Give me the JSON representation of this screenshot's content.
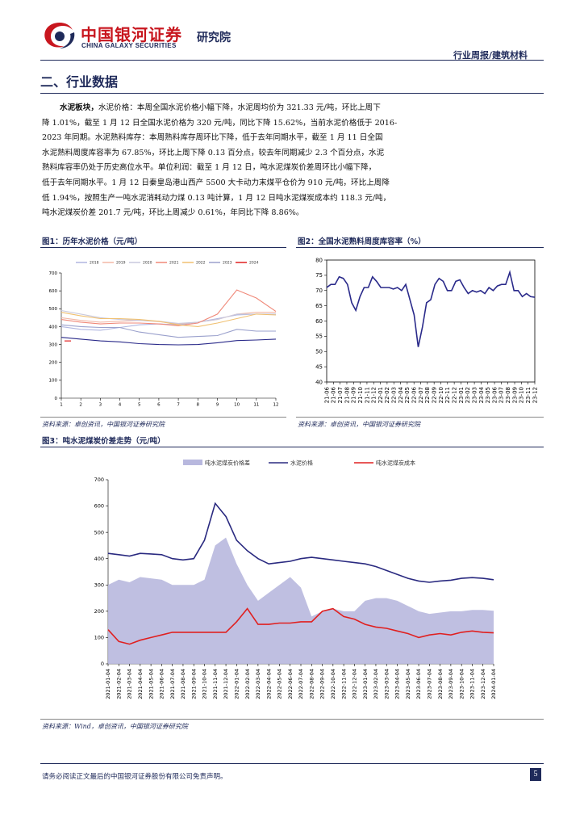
{
  "header": {
    "logo_cn": "中国银河证券",
    "logo_en": "CHINA GALAXY SECURITIES",
    "institute": "研究院",
    "report_type": "行业周报/建筑材料"
  },
  "section": {
    "title": "二、行业数据"
  },
  "paragraph": {
    "lead": "水泥板块，",
    "lines": [
      "水泥价格：本周全国水泥价格小幅下降，水泥周均价为 321.33 元/吨，环比上周下",
      "降 1.01%，截至 1 月 12 日全国水泥价格为 320 元/吨，同比下降 15.62%，当前水泥价格低于 2016-",
      "2023 年同期。水泥熟料库存：本周熟料库存周环比下降，低于去年同期水平，截至 1 月 11 日全国",
      "水泥熟料周度库容率为 67.85%，环比上周下降 0.13 百分点，较去年同期减少 2.3 个百分点，水泥",
      "熟料库容率仍处于历史高位水平。单位利润：截至 1 月 12 日，吨水泥煤炭价差周环比小幅下降，",
      "低于去年同期水平。1 月 12 日秦皇岛港山西产 5500 大卡动力末煤平仓价为 910 元/吨，环比上周降",
      "低 1.94%，按照生产一吨水泥消耗动力煤 0.13 吨计算，1 月 12 日吨水泥煤炭成本约 118.3 元/吨，",
      "吨水泥煤炭价差 201.7 元/吨，环比上周减少 0.61%，年同比下降 8.86%。"
    ]
  },
  "figures": {
    "fig1": {
      "title": "图1：历年水泥价格（元/吨）",
      "source": "资料来源：卓创资讯，中国银河证券研究院"
    },
    "fig2": {
      "title": "图2：全国水泥熟料周度库容率（%）",
      "source": "资料来源：卓创资讯，中国银河证券研究院"
    },
    "fig3": {
      "title": "图3：吨水泥煤炭价差走势（元/吨）",
      "source": "资料来源：Wind，卓创资讯，中国银河证券研究院"
    }
  },
  "footer": {
    "disclaimer": "请务必阅读正文最后的中国银河证券股份有限公司免责声明。",
    "page": "5"
  },
  "chart_data": [
    {
      "id": "fig1",
      "type": "line",
      "x_ticks": [
        "1",
        "2",
        "3",
        "4",
        "5",
        "6",
        "7",
        "8",
        "9",
        "10",
        "11",
        "12"
      ],
      "ylim": [
        0,
        700
      ],
      "y_ticks": [
        0,
        100,
        200,
        300,
        400,
        500,
        600,
        700
      ],
      "legend_position": "top",
      "series": [
        {
          "name": "2018",
          "color": "#b0b6e0",
          "values": [
            400,
            385,
            380,
            395,
            410,
            415,
            410,
            425,
            445,
            465,
            470,
            470
          ]
        },
        {
          "name": "2019",
          "color": "#f2b8a6",
          "values": [
            450,
            435,
            425,
            430,
            435,
            428,
            415,
            425,
            440,
            470,
            480,
            480
          ]
        },
        {
          "name": "2020",
          "color": "#c9c9dd",
          "values": [
            490,
            470,
            450,
            440,
            435,
            430,
            418,
            425,
            440,
            470,
            470,
            470
          ]
        },
        {
          "name": "2021",
          "color": "#f08878",
          "values": [
            440,
            425,
            415,
            420,
            420,
            415,
            405,
            420,
            470,
            605,
            560,
            485
          ]
        },
        {
          "name": "2022",
          "color": "#f0c070",
          "values": [
            480,
            460,
            445,
            445,
            440,
            430,
            410,
            400,
            420,
            445,
            470,
            465
          ]
        },
        {
          "name": "2023",
          "color": "#9aa0cc",
          "values": [
            410,
            400,
            395,
            395,
            370,
            355,
            340,
            345,
            350,
            385,
            375,
            375
          ]
        },
        {
          "name": "2024",
          "color": "#e02020",
          "values": [
            320
          ]
        },
        {
          "name": "",
          "color": "#2a2a8a",
          "values": [
            340,
            330,
            320,
            315,
            305,
            300,
            298,
            300,
            310,
            322,
            325,
            330
          ]
        }
      ]
    },
    {
      "id": "fig2",
      "type": "line",
      "x_ticks": [
        "21-06",
        "21-06",
        "21-07",
        "21-08",
        "21-09",
        "21-10",
        "21-11",
        "21-12",
        "22-01",
        "22-02",
        "22-03",
        "22-04",
        "22-05",
        "22-06",
        "22-07",
        "22-08",
        "22-09",
        "22-10",
        "22-11",
        "22-12",
        "23-01",
        "23-02",
        "23-03",
        "23-04",
        "23-05",
        "23-06",
        "23-07",
        "23-08",
        "23-09",
        "23-10",
        "23-11",
        "23-12"
      ],
      "ylim": [
        40,
        80
      ],
      "y_ticks": [
        40,
        45,
        50,
        55,
        60,
        65,
        70,
        75,
        80
      ],
      "series": [
        {
          "name": "",
          "color": "#2a2a8a",
          "values": [
            71,
            72,
            72,
            74.5,
            74,
            72,
            66,
            63.5,
            68,
            71,
            71,
            74.5,
            73,
            71,
            71,
            71,
            70.5,
            71,
            70,
            72,
            67,
            62,
            51.5,
            58,
            66,
            67,
            72,
            74,
            73,
            70,
            70,
            73,
            73.5,
            71,
            69,
            70,
            69.5,
            70,
            69,
            71,
            70,
            71.5,
            72,
            72,
            76,
            70,
            70,
            68,
            69,
            68,
            67.8
          ]
        }
      ]
    },
    {
      "id": "fig3",
      "type": "line",
      "x_ticks": [
        "2021-01-04",
        "2021-02-04",
        "2021-03-04",
        "2021-04-04",
        "2021-05-04",
        "2021-06-04",
        "2021-07-04",
        "2021-08-04",
        "2021-09-04",
        "2021-10-04",
        "2021-11-04",
        "2021-12-04",
        "2022-01-04",
        "2022-02-04",
        "2022-03-04",
        "2022-04-04",
        "2022-05-04",
        "2022-06-04",
        "2022-07-04",
        "2022-08-04",
        "2022-09-04",
        "2022-10-04",
        "2022-11-04",
        "2022-12-04",
        "2023-01-04",
        "2023-02-04",
        "2023-03-04",
        "2023-04-04",
        "2023-05-04",
        "2023-06-04",
        "2023-07-04",
        "2023-08-04",
        "2023-09-04",
        "2023-10-04",
        "2023-11-04",
        "2023-12-04",
        "2024-01-04"
      ],
      "ylim": [
        0,
        700
      ],
      "y_ticks": [
        0,
        100,
        200,
        300,
        400,
        500,
        600,
        700
      ],
      "legend_position": "top",
      "series": [
        {
          "name": "吨水泥煤炭价格差",
          "color": "#b8b8de",
          "values": [
            300,
            320,
            310,
            330,
            325,
            320,
            300,
            300,
            300,
            320,
            450,
            480,
            380,
            300,
            240,
            270,
            300,
            330,
            290,
            180,
            200,
            210,
            200,
            200,
            240,
            250,
            250,
            240,
            220,
            200,
            190,
            195,
            200,
            200,
            205,
            205,
            202
          ]
        },
        {
          "name": "水泥价格",
          "color": "#2a2a80",
          "values": [
            420,
            415,
            410,
            420,
            418,
            415,
            400,
            395,
            400,
            470,
            610,
            560,
            470,
            430,
            400,
            380,
            385,
            390,
            400,
            405,
            400,
            395,
            390,
            385,
            380,
            370,
            355,
            340,
            325,
            315,
            310,
            315,
            318,
            325,
            328,
            325,
            320
          ]
        },
        {
          "name": "吨水泥煤炭成本",
          "color": "#e02020",
          "values": [
            130,
            85,
            75,
            90,
            100,
            110,
            120,
            120,
            120,
            120,
            120,
            120,
            160,
            210,
            150,
            150,
            155,
            155,
            160,
            160,
            200,
            210,
            180,
            170,
            150,
            140,
            135,
            125,
            115,
            100,
            110,
            115,
            110,
            120,
            125,
            120,
            118
          ]
        }
      ]
    }
  ]
}
